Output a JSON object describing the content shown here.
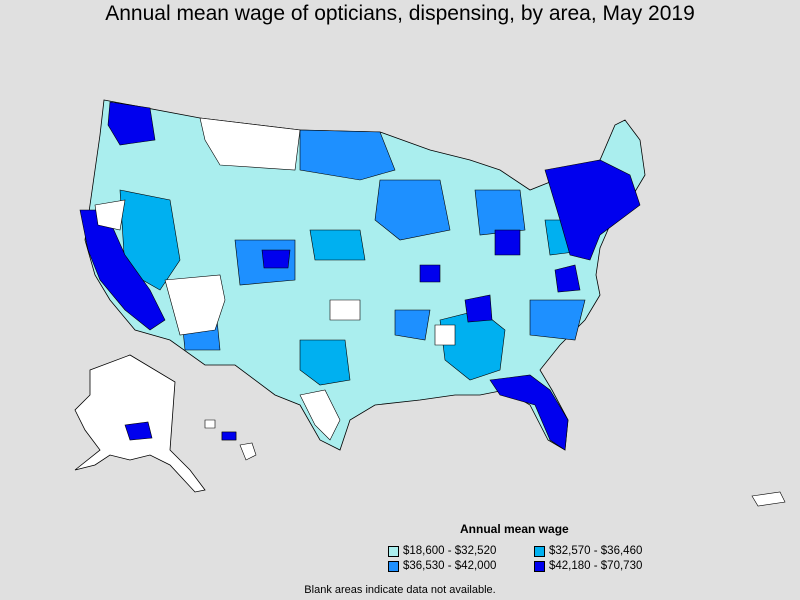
{
  "title": "Annual mean wage of opticians, dispensing, by area, May 2019",
  "legend": {
    "title": "Annual mean wage",
    "items": [
      {
        "label": "$18,600 - $32,520",
        "color": "#aaeeee"
      },
      {
        "label": "$32,570 - $36,460",
        "color": "#00b0f0"
      },
      {
        "label": "$36,530 - $42,000",
        "color": "#1e90ff"
      },
      {
        "label": "$42,180 - $70,730",
        "color": "#0000ee"
      }
    ]
  },
  "footnote": "Blank areas indicate data not available.",
  "colors": {
    "background": "#e0e0e0",
    "no_data": "#ffffff",
    "border": "#000000"
  }
}
